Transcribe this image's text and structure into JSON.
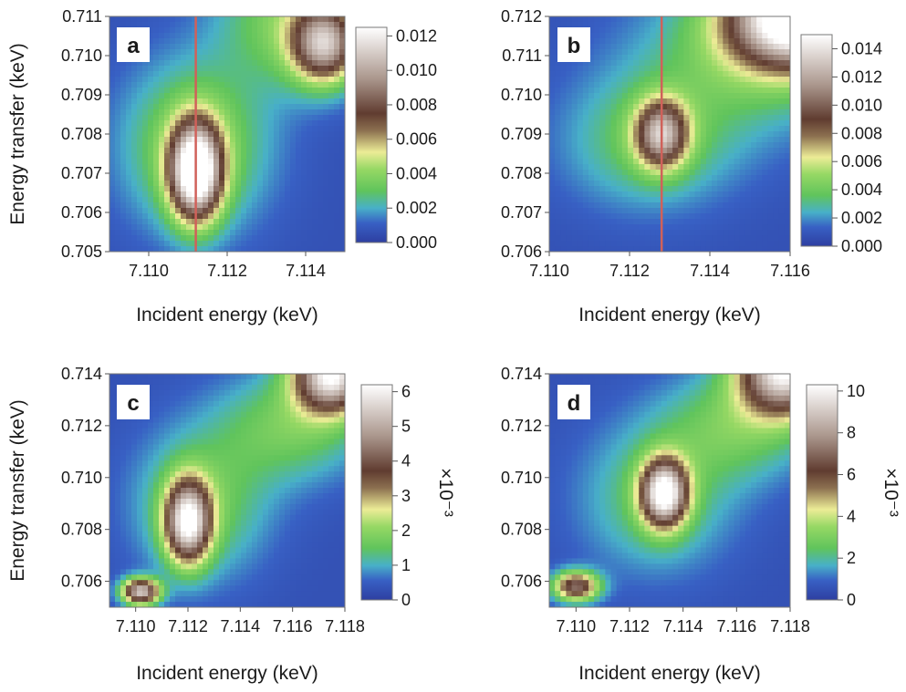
{
  "chart_data": [
    {
      "type": "heatmap",
      "panel_label": "a",
      "xlabel": "Incident energy (keV)",
      "ylabel": "Energy transfer (keV)",
      "xlim": [
        7.109,
        7.115
      ],
      "ylim": [
        0.705,
        0.711
      ],
      "xticks": [
        "7.110",
        "7.112",
        "7.114"
      ],
      "yticks": [
        "0.705",
        "0.706",
        "0.707",
        "0.708",
        "0.709",
        "0.710",
        "0.711"
      ],
      "colorbar": {
        "range": [
          0,
          0.0125
        ],
        "ticks": [
          "0.000",
          "0.002",
          "0.004",
          "0.006",
          "0.008",
          "0.010",
          "0.012"
        ],
        "multiplier": ""
      },
      "vertical_line_x": 7.1112,
      "features": [
        {
          "x": 7.1112,
          "y": 0.70705,
          "sx": 0.00045,
          "sy": 0.00085,
          "amplitude": 0.0125
        },
        {
          "x": 7.1112,
          "y": 0.7077,
          "sx": 0.0013,
          "sy": 0.0015,
          "amplitude": 0.0035
        },
        {
          "x": 7.1145,
          "y": 0.7103,
          "sx": 0.0006,
          "sy": 0.0007,
          "amplitude": 0.009
        },
        {
          "x": 7.1135,
          "y": 0.711,
          "sx": 0.0012,
          "sy": 0.0012,
          "amplitude": 0.003
        }
      ]
    },
    {
      "type": "heatmap",
      "panel_label": "b",
      "xlabel": "Incident energy (keV)",
      "ylabel": "",
      "xlim": [
        7.11,
        7.116
      ],
      "ylim": [
        0.706,
        0.712
      ],
      "xticks": [
        "7.110",
        "7.112",
        "7.114",
        "7.116"
      ],
      "yticks": [
        "0.706",
        "0.707",
        "0.708",
        "0.709",
        "0.710",
        "0.711",
        "0.712"
      ],
      "colorbar": {
        "range": [
          0,
          0.015
        ],
        "ticks": [
          "0.000",
          "0.002",
          "0.004",
          "0.006",
          "0.008",
          "0.010",
          "0.012",
          "0.014"
        ],
        "multiplier": ""
      },
      "vertical_line_x": 7.1128,
      "features": [
        {
          "x": 7.1128,
          "y": 0.709,
          "sx": 0.00045,
          "sy": 0.0006,
          "amplitude": 0.0095
        },
        {
          "x": 7.1125,
          "y": 0.7088,
          "sx": 0.0015,
          "sy": 0.0012,
          "amplitude": 0.003
        },
        {
          "x": 7.1162,
          "y": 0.712,
          "sx": 0.0012,
          "sy": 0.0009,
          "amplitude": 0.016
        },
        {
          "x": 7.115,
          "y": 0.711,
          "sx": 0.002,
          "sy": 0.0014,
          "amplitude": 0.003
        }
      ]
    },
    {
      "type": "heatmap",
      "panel_label": "c",
      "xlabel": "Incident energy (keV)",
      "ylabel": "Energy transfer (keV)",
      "xlim": [
        7.109,
        7.118
      ],
      "ylim": [
        0.705,
        0.714
      ],
      "xticks": [
        "7.110",
        "7.112",
        "7.114",
        "7.116",
        "7.118"
      ],
      "yticks": [
        "0.706",
        "0.708",
        "0.710",
        "0.712",
        "0.714"
      ],
      "colorbar": {
        "range": [
          0,
          6.2
        ],
        "ticks": [
          "0",
          "1",
          "2",
          "3",
          "4",
          "5",
          "6"
        ],
        "multiplier": "×10⁻³"
      },
      "features": [
        {
          "x": 7.112,
          "y": 0.7083,
          "sx": 0.0006,
          "sy": 0.0011,
          "amplitude": 5.2
        },
        {
          "x": 7.1125,
          "y": 0.709,
          "sx": 0.0018,
          "sy": 0.002,
          "amplitude": 1.4
        },
        {
          "x": 7.1102,
          "y": 0.7056,
          "sx": 0.0005,
          "sy": 0.00035,
          "amplitude": 5.0
        },
        {
          "x": 7.1175,
          "y": 0.714,
          "sx": 0.001,
          "sy": 0.001,
          "amplitude": 5.6
        },
        {
          "x": 7.116,
          "y": 0.712,
          "sx": 0.002,
          "sy": 0.0015,
          "amplitude": 1.4
        }
      ]
    },
    {
      "type": "heatmap",
      "panel_label": "d",
      "xlabel": "Incident energy (keV)",
      "ylabel": "",
      "xlim": [
        7.109,
        7.118
      ],
      "ylim": [
        0.705,
        0.714
      ],
      "xticks": [
        "7.110",
        "7.112",
        "7.114",
        "7.116",
        "7.118"
      ],
      "yticks": [
        "0.706",
        "0.708",
        "0.710",
        "0.712",
        "0.714"
      ],
      "colorbar": {
        "range": [
          0,
          10.3
        ],
        "ticks": [
          "0",
          "2",
          "4",
          "6",
          "8",
          "10"
        ],
        "multiplier": "×10⁻³"
      },
      "features": [
        {
          "x": 7.1133,
          "y": 0.7094,
          "sx": 0.0006,
          "sy": 0.0009,
          "amplitude": 9.0
        },
        {
          "x": 7.113,
          "y": 0.7092,
          "sx": 0.002,
          "sy": 0.002,
          "amplitude": 2.0
        },
        {
          "x": 7.11,
          "y": 0.7058,
          "sx": 0.0006,
          "sy": 0.0004,
          "amplitude": 6.5
        },
        {
          "x": 7.1178,
          "y": 0.7142,
          "sx": 0.0012,
          "sy": 0.0012,
          "amplitude": 9.5
        },
        {
          "x": 7.116,
          "y": 0.712,
          "sx": 0.002,
          "sy": 0.0015,
          "amplitude": 2.2
        }
      ]
    }
  ]
}
